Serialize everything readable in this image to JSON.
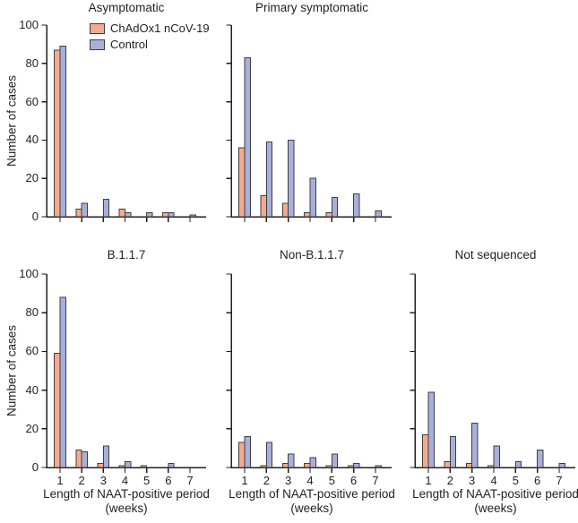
{
  "figure": {
    "ylabel": "Number of cases",
    "xlabel_line1": "Length of NAAT-positive period",
    "xlabel_line2": "(weeks)"
  },
  "chart_data": {
    "type": "bar",
    "categories": [
      1,
      2,
      3,
      4,
      5,
      6,
      7
    ],
    "xlabel": "Length of NAAT-positive period (weeks)",
    "ylabel": "Number of cases",
    "ylim": [
      0,
      100
    ],
    "yticks": [
      0,
      20,
      40,
      60,
      80,
      100
    ],
    "grid": false,
    "legend_position": "inside top-left panel",
    "axis_color": "#231f20",
    "bar_stroke": "#3f3f3f",
    "legend": [
      {
        "label": "ChAdOx1 nCoV-19",
        "color": "#f8a98d"
      },
      {
        "label": "Control",
        "color": "#a7b0db"
      }
    ],
    "panels": [
      {
        "title": "Asymptomatic",
        "row": 0,
        "col": 0,
        "show_y_tick_labels": true,
        "show_x_tick_labels": false,
        "show_legend": true,
        "series": [
          {
            "name": "ChAdOx1 nCoV-19",
            "values": [
              87,
              4,
              0,
              4,
              0,
              2,
              0
            ]
          },
          {
            "name": "Control",
            "values": [
              89,
              7,
              9,
              2,
              2,
              2,
              1
            ]
          }
        ]
      },
      {
        "title": "Primary symptomatic",
        "row": 0,
        "col": 1,
        "show_y_tick_labels": false,
        "show_x_tick_labels": false,
        "show_legend": false,
        "series": [
          {
            "name": "ChAdOx1 nCoV-19",
            "values": [
              36,
              11,
              7,
              2,
              2,
              0,
              0
            ]
          },
          {
            "name": "Control",
            "values": [
              83,
              39,
              40,
              20,
              10,
              12,
              3
            ]
          }
        ]
      },
      {
        "title": "B.1.1.7",
        "row": 1,
        "col": 0,
        "show_y_tick_labels": true,
        "show_x_tick_labels": true,
        "show_legend": false,
        "series": [
          {
            "name": "ChAdOx1 nCoV-19",
            "values": [
              59,
              9,
              2,
              1,
              1,
              0,
              0
            ]
          },
          {
            "name": "Control",
            "values": [
              88,
              8,
              11,
              3,
              0,
              2,
              0
            ]
          }
        ]
      },
      {
        "title": "Non-B.1.1.7",
        "row": 1,
        "col": 1,
        "show_y_tick_labels": false,
        "show_x_tick_labels": true,
        "show_legend": false,
        "series": [
          {
            "name": "ChAdOx1 nCoV-19",
            "values": [
              13,
              1,
              2,
              2,
              1,
              1,
              0
            ]
          },
          {
            "name": "Control",
            "values": [
              16,
              13,
              7,
              5,
              7,
              2,
              1
            ]
          }
        ]
      },
      {
        "title": "Not sequenced",
        "row": 1,
        "col": 2,
        "show_y_tick_labels": false,
        "show_x_tick_labels": true,
        "show_legend": false,
        "series": [
          {
            "name": "ChAdOx1 nCoV-19",
            "values": [
              17,
              3,
              2,
              1,
              0,
              0,
              0
            ]
          },
          {
            "name": "Control",
            "values": [
              39,
              16,
              23,
              11,
              3,
              9,
              2
            ]
          }
        ]
      }
    ]
  }
}
